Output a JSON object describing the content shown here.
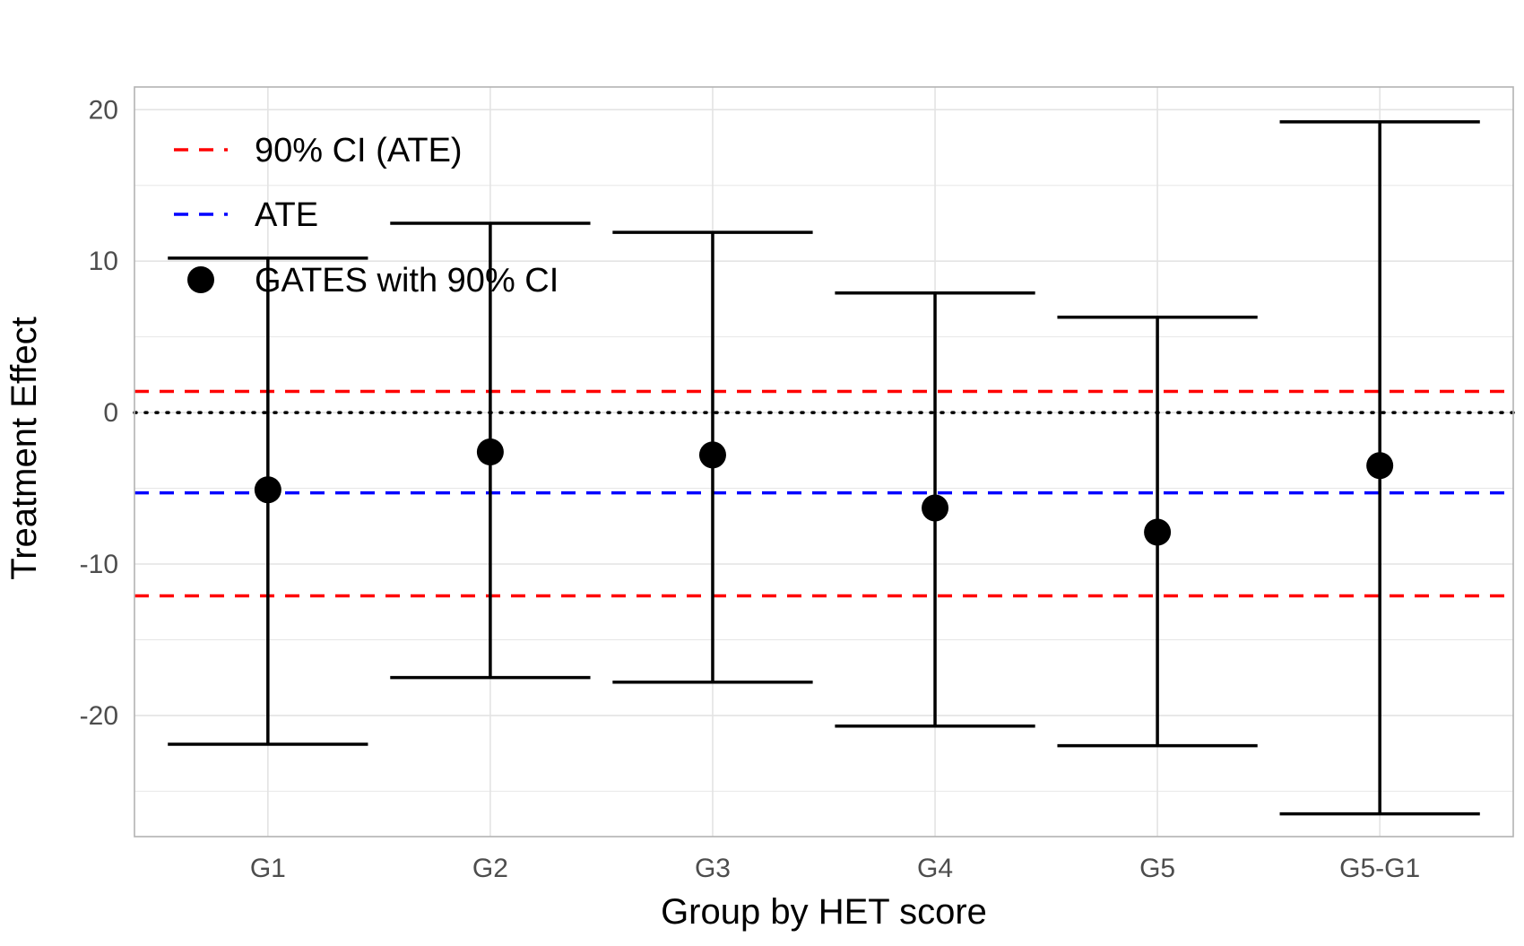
{
  "chart_data": {
    "type": "errorbar",
    "title": "",
    "xlabel": "Group by HET score",
    "ylabel": "Treatment Effect",
    "categories": [
      "G1",
      "G2",
      "G3",
      "G4",
      "G5",
      "G5-G1"
    ],
    "estimates": [
      -5.1,
      -2.6,
      -2.8,
      -6.3,
      -7.9,
      -3.5
    ],
    "ci_lower": [
      -21.9,
      -17.5,
      -17.8,
      -20.7,
      -22.0,
      -26.5
    ],
    "ci_upper": [
      10.2,
      12.5,
      11.9,
      7.9,
      6.3,
      19.2
    ],
    "ylim": [
      -28,
      21.5
    ],
    "y_ticks": [
      20,
      10,
      0,
      -10,
      -20
    ],
    "y_tick_labels": [
      "20",
      "10",
      "0",
      "-10",
      "-20"
    ],
    "reference_lines": {
      "zero": 0,
      "ate": -5.3,
      "ate_ci": [
        1.4,
        -12.1
      ]
    },
    "colors": {
      "ate": "#0000ff",
      "ate_ci": "#ff0000",
      "gates": "#000000",
      "grid": "#e3e3e3",
      "panel_border": "#b3b3b3"
    },
    "legend": {
      "position": "top-left",
      "entries": [
        {
          "label": "90% CI (ATE)",
          "style": "dashed",
          "color": "#ff0000"
        },
        {
          "label": "ATE",
          "style": "dashed",
          "color": "#0000ff"
        },
        {
          "label": "GATES with 90% CI",
          "style": "point",
          "color": "#000000"
        }
      ]
    },
    "grid": true
  }
}
